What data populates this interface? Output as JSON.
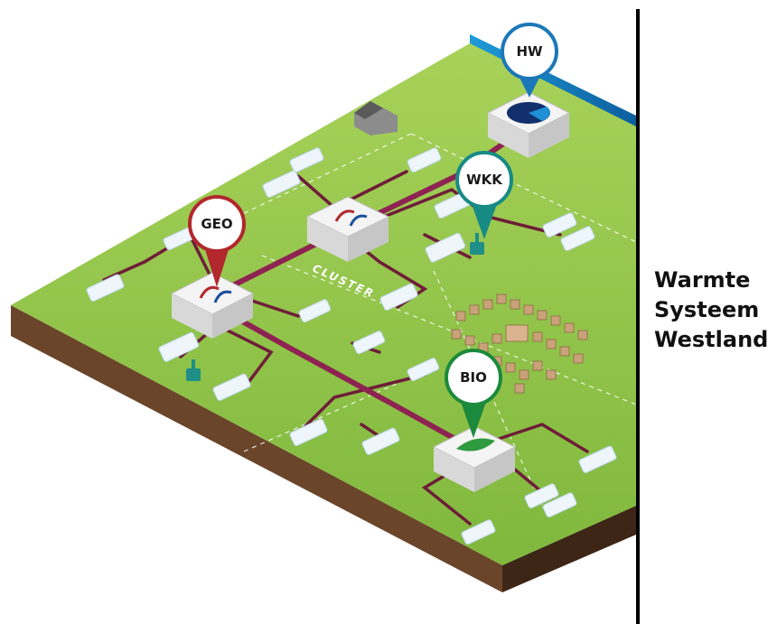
{
  "title_lines": [
    "Warmte",
    "Systeem",
    "Westland"
  ],
  "cluster_label": "CLUSTER",
  "pins": [
    {
      "label": "HW",
      "color": "#1b78b8"
    },
    {
      "label": "WKK",
      "color": "#178a84"
    },
    {
      "label": "GEO",
      "color": "#b2282d"
    },
    {
      "label": "BIO",
      "color": "#1c8a3c"
    }
  ],
  "colors": {
    "grass_top": "#a6cf55",
    "grass_bottom": "#5f9e2c",
    "soil": "#6e4a2e",
    "soil_dark": "#3a2414",
    "water": "#1a8bd0",
    "pipe": "#6e1e38",
    "pipe_main": "#8e2352",
    "greenhouse": "#eef6fb",
    "plant_box": "#e6e6e6"
  }
}
